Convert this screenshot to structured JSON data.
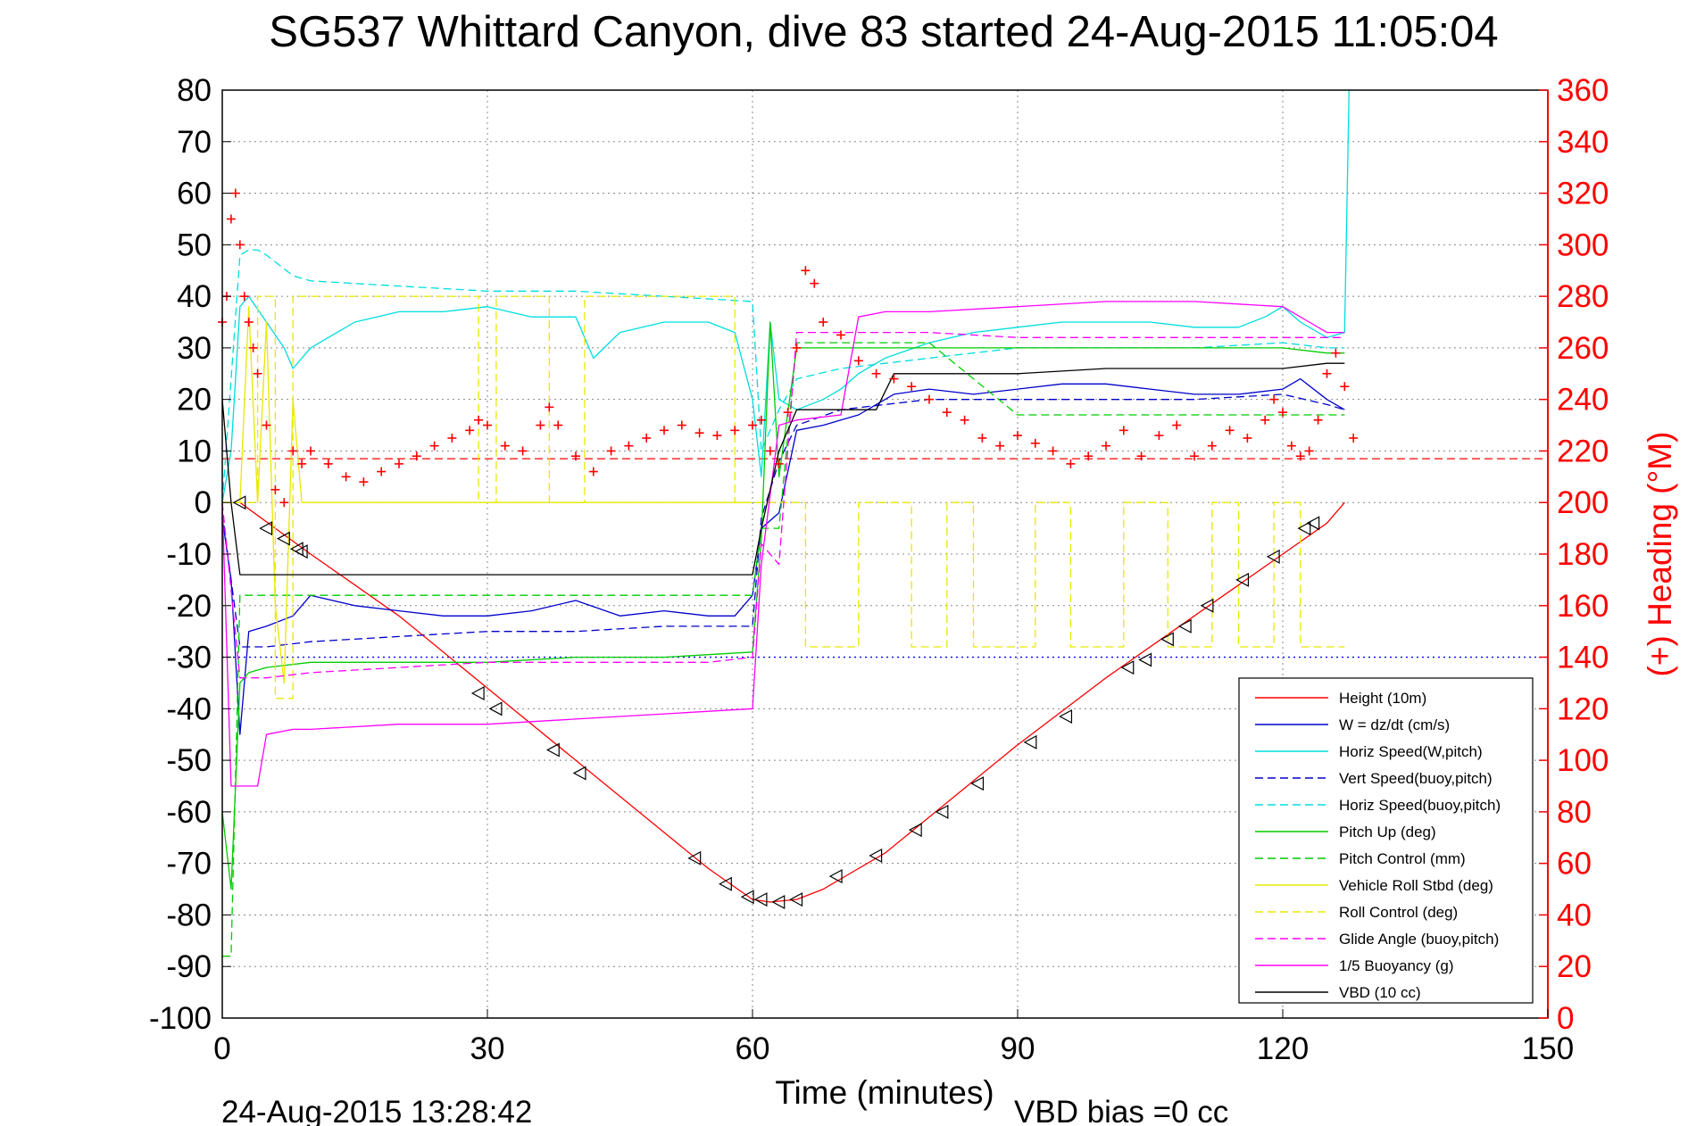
{
  "chart_data": {
    "type": "line",
    "title": "SG537 Whittard Canyon, dive 83 started 24-Aug-2015 11:05:04",
    "xlabel": "Time (minutes)",
    "ylabel": "",
    "y2label": "(+) Heading (°M)",
    "footer_left": "24-Aug-2015 13:28:42",
    "footer_right": "VBD bias =0 cc",
    "xlim": [
      0,
      150
    ],
    "ylim": [
      -100,
      80
    ],
    "y2lim": [
      0,
      360
    ],
    "x_ticks": [
      "0",
      "30",
      "60",
      "90",
      "120",
      "150"
    ],
    "y_ticks": [
      "80",
      "70",
      "60",
      "50",
      "40",
      "30",
      "20",
      "10",
      "0",
      "-10",
      "-20",
      "-30",
      "-40",
      "-50",
      "-60",
      "-70",
      "-80",
      "-90",
      "-100"
    ],
    "y2_ticks": [
      "360",
      "340",
      "320",
      "300",
      "280",
      "260",
      "240",
      "220",
      "200",
      "180",
      "160",
      "140",
      "120",
      "100",
      "80",
      "60",
      "40",
      "20",
      "0"
    ],
    "grid": true,
    "legend_position": "bottom-right",
    "series": [
      {
        "name": "Height (10m)",
        "color": "#ff0000",
        "style": "solid",
        "x": [
          0,
          2,
          10,
          20,
          30,
          40,
          50,
          55,
          60,
          62,
          65,
          68,
          70,
          75,
          80,
          90,
          100,
          110,
          120,
          125,
          127
        ],
        "y": [
          0,
          0,
          -10,
          -22,
          -36,
          -50,
          -64,
          -71,
          -77,
          -77.5,
          -77,
          -75,
          -73,
          -68,
          -61,
          -47,
          -34,
          -22,
          -10,
          -4,
          0
        ]
      },
      {
        "name": "W = dz/dt (cm/s)",
        "color": "#0000cc",
        "style": "solid",
        "x": [
          0,
          1,
          2,
          3,
          5,
          8,
          10,
          15,
          20,
          25,
          30,
          35,
          40,
          45,
          50,
          55,
          58,
          60,
          61,
          63,
          65,
          68,
          70,
          72,
          74,
          76,
          80,
          85,
          90,
          95,
          100,
          105,
          110,
          115,
          120,
          122,
          125,
          127
        ],
        "y": [
          -3,
          -15,
          -45,
          -25,
          -24,
          -22,
          -18,
          -20,
          -21,
          -22,
          -22,
          -21,
          -19,
          -22,
          -21,
          -22,
          -22,
          -18,
          -5,
          -2,
          14,
          15,
          16,
          17,
          19,
          21,
          22,
          21,
          22,
          23,
          23,
          22,
          21,
          21,
          22,
          24,
          20,
          18
        ]
      },
      {
        "name": "Horiz Speed(W,pitch)",
        "color": "#00dddd",
        "style": "solid",
        "x": [
          0,
          1,
          2,
          3,
          5,
          7,
          8,
          10,
          15,
          20,
          25,
          30,
          35,
          40,
          42,
          45,
          50,
          55,
          58,
          60,
          61,
          62,
          63,
          65,
          68,
          70,
          72,
          75,
          80,
          85,
          90,
          95,
          100,
          105,
          110,
          115,
          118,
          120,
          122,
          125,
          127,
          127.5
        ],
        "y": [
          0,
          10,
          38,
          40,
          35,
          30,
          26,
          30,
          35,
          37,
          37,
          38,
          36,
          36,
          28,
          33,
          35,
          35,
          33,
          20,
          5,
          35,
          20,
          18,
          20,
          22,
          25,
          28,
          31,
          33,
          34,
          35,
          35,
          35,
          34,
          34,
          36,
          38,
          35,
          32,
          33,
          80
        ]
      },
      {
        "name": "Vert Speed(buoy,pitch)",
        "color": "#0000cc",
        "style": "dashed",
        "x": [
          0,
          2,
          5,
          10,
          20,
          30,
          40,
          50,
          60,
          61,
          63,
          65,
          70,
          75,
          80,
          90,
          100,
          110,
          120,
          125,
          127
        ],
        "y": [
          -2,
          -28,
          -28,
          -27,
          -26,
          -25,
          -25,
          -24,
          -24,
          -3,
          8,
          15,
          18,
          19,
          20,
          20,
          20,
          20,
          21,
          19,
          18
        ]
      },
      {
        "name": "Horiz Speed(buoy,pitch)",
        "color": "#00dddd",
        "style": "dashed",
        "x": [
          0,
          2,
          3,
          4,
          5,
          8,
          10,
          20,
          30,
          40,
          50,
          60,
          61,
          63,
          65,
          70,
          75,
          80,
          90,
          100,
          110,
          120,
          125,
          127
        ],
        "y": [
          0,
          48,
          49,
          49,
          48,
          44,
          43,
          42,
          41,
          41,
          40,
          39,
          10,
          18,
          24,
          26,
          27,
          28,
          30,
          30,
          30,
          31,
          30,
          30
        ]
      },
      {
        "name": "Pitch Up (deg)",
        "color": "#00cc00",
        "style": "solid",
        "x": [
          0,
          1,
          2,
          3,
          5,
          10,
          20,
          30,
          40,
          50,
          60,
          61,
          62,
          63,
          65,
          70,
          75,
          80,
          90,
          100,
          110,
          120,
          125,
          127
        ],
        "y": [
          -60,
          -75,
          -35,
          -33,
          -32,
          -31,
          -31,
          -31,
          -30,
          -30,
          -29,
          -7,
          35,
          5,
          30,
          30,
          30,
          30,
          30,
          30,
          30,
          30,
          29,
          29
        ]
      },
      {
        "name": "Pitch Control (mm)",
        "color": "#00cc00",
        "style": "dashed",
        "x": [
          0,
          1,
          2,
          3,
          5,
          10,
          20,
          30,
          40,
          50,
          60,
          61,
          63,
          65,
          70,
          75,
          80,
          90,
          100,
          110,
          120,
          125,
          127
        ],
        "y": [
          -88,
          -88,
          -18,
          -18,
          -18,
          -18,
          -18,
          -18,
          -18,
          -18,
          -18,
          -5,
          -5,
          31,
          31,
          31,
          31,
          17,
          17,
          17,
          17,
          17,
          17
        ]
      },
      {
        "name": "Vehicle Roll Stbd (deg)",
        "color": "#e8e800",
        "style": "solid",
        "x": [
          0,
          2,
          3,
          4,
          5,
          6,
          7,
          8,
          9,
          10,
          20,
          30,
          40,
          50,
          55,
          60
        ],
        "y": [
          0,
          0,
          38,
          0,
          35,
          -20,
          -35,
          20,
          0,
          0,
          0,
          0,
          0,
          0,
          0,
          0
        ]
      },
      {
        "name": "Roll Control (deg)",
        "color": "#e8e800",
        "style": "dashed",
        "x": [
          0,
          4,
          4,
          6,
          6,
          8,
          8,
          29,
          29,
          31,
          31,
          37,
          37,
          41,
          41,
          58,
          58,
          60,
          60,
          66,
          66,
          72,
          72,
          78,
          78,
          82,
          82,
          85,
          85,
          92,
          92,
          96,
          96,
          102,
          102,
          107,
          107,
          112,
          112,
          115,
          115,
          119,
          119,
          122,
          122,
          124,
          124,
          127
        ],
        "y": [
          0,
          0,
          40,
          40,
          -38,
          -38,
          40,
          40,
          0,
          0,
          40,
          40,
          0,
          0,
          40,
          40,
          0,
          0,
          0,
          0,
          -28,
          -28,
          0,
          0,
          -28,
          -28,
          0,
          0,
          -28,
          -28,
          0,
          0,
          -28,
          -28,
          0,
          0,
          -28,
          -28,
          0,
          0,
          -28,
          -28,
          0,
          0,
          -28,
          -28,
          -28,
          -28
        ]
      },
      {
        "name": "Glide Angle (buoy,pitch)",
        "color": "#ff00ff",
        "style": "dashed",
        "x": [
          0,
          2,
          5,
          10,
          20,
          30,
          40,
          50,
          55,
          60,
          61,
          63,
          65,
          70,
          75,
          80,
          90,
          100,
          110,
          120,
          125,
          127
        ],
        "y": [
          0,
          -34,
          -34,
          -33,
          -32,
          -31,
          -31,
          -31,
          -31,
          -30,
          -8,
          -12,
          33,
          33,
          33,
          33,
          32,
          32,
          32,
          32,
          32,
          32
        ]
      },
      {
        "name": "1/5 Buoyancy (g)",
        "color": "#ff00ff",
        "style": "solid",
        "x": [
          0,
          1,
          2,
          4,
          5,
          8,
          10,
          20,
          30,
          40,
          50,
          60,
          61,
          63,
          65,
          70,
          72,
          75,
          80,
          90,
          100,
          110,
          120,
          123,
          125,
          127
        ],
        "y": [
          0,
          -55,
          -55,
          -55,
          -45,
          -44,
          -44,
          -43,
          -43,
          -42,
          -41,
          -40,
          -12,
          15,
          16,
          17,
          36,
          37,
          37,
          38,
          39,
          39,
          38,
          35,
          33,
          33
        ]
      },
      {
        "name": "VBD (10 cc)",
        "color": "#000000",
        "style": "solid",
        "x": [
          0,
          1,
          2,
          2,
          60,
          61,
          63,
          65,
          70,
          72,
          74,
          76,
          80,
          90,
          100,
          110,
          120,
          125,
          127
        ],
        "y": [
          20,
          0,
          -14,
          -14,
          -14,
          -5,
          10,
          18,
          18,
          18,
          18,
          25,
          25,
          25,
          26,
          26,
          26,
          27,
          27
        ]
      }
    ],
    "heading_series": {
      "name": "(+) Heading",
      "color": "#ff0000",
      "marker": "+",
      "axis": "right",
      "x": [
        0,
        0.5,
        1,
        1.5,
        2,
        2.5,
        3,
        3.5,
        4,
        5,
        6,
        7,
        8,
        9,
        10,
        12,
        14,
        16,
        18,
        20,
        22,
        24,
        26,
        28,
        29,
        30,
        32,
        34,
        36,
        37,
        38,
        40,
        42,
        44,
        46,
        48,
        50,
        52,
        54,
        56,
        58,
        60,
        61,
        62,
        63,
        64,
        65,
        66,
        67,
        68,
        70,
        72,
        74,
        76,
        78,
        80,
        82,
        84,
        86,
        88,
        90,
        92,
        94,
        96,
        98,
        100,
        102,
        104,
        106,
        108,
        110,
        112,
        114,
        116,
        118,
        119,
        120,
        121,
        122,
        123,
        124,
        125,
        126,
        127,
        128
      ],
      "y": [
        270,
        280,
        310,
        320,
        300,
        280,
        270,
        260,
        250,
        230,
        205,
        200,
        220,
        215,
        220,
        215,
        210,
        208,
        212,
        215,
        218,
        222,
        225,
        228,
        232,
        230,
        222,
        220,
        230,
        237,
        230,
        218,
        212,
        220,
        222,
        225,
        228,
        230,
        227,
        226,
        228,
        230,
        232,
        220,
        215,
        235,
        260,
        290,
        285,
        270,
        265,
        255,
        250,
        248,
        245,
        240,
        235,
        232,
        225,
        222,
        226,
        223,
        220,
        215,
        218,
        222,
        228,
        218,
        226,
        230,
        218,
        222,
        228,
        225,
        232,
        240,
        235,
        222,
        218,
        220,
        232,
        250,
        258,
        245,
        225
      ]
    },
    "reference_lines": [
      {
        "axis": "right",
        "value": 217,
        "color": "#ff0000",
        "style": "dashed"
      },
      {
        "axis": "right",
        "value": 140,
        "color": "#0000ff",
        "style": "dotted"
      }
    ],
    "triangle_markers": {
      "x": [
        2,
        5,
        7,
        8.5,
        9,
        29,
        31,
        37.5,
        40.5,
        53.5,
        57,
        59.5,
        61,
        63,
        65,
        69.5,
        74,
        78.5,
        81.5,
        85.5,
        91.5,
        95.5,
        102.5,
        104.5,
        107,
        109,
        111.5,
        115.5,
        119,
        122.5,
        123.5
      ],
      "y": [
        0,
        -5,
        -7,
        -9,
        -9.5,
        -37,
        -40,
        -48,
        -52.5,
        -69,
        -74,
        -76.5,
        -77,
        -77.5,
        -77,
        -72.5,
        -68.5,
        -63.5,
        -60,
        -54.5,
        -46.5,
        -41.5,
        -32,
        -30.5,
        -26.5,
        -24,
        -20,
        -15,
        -10.5,
        -5,
        -4
      ]
    }
  }
}
